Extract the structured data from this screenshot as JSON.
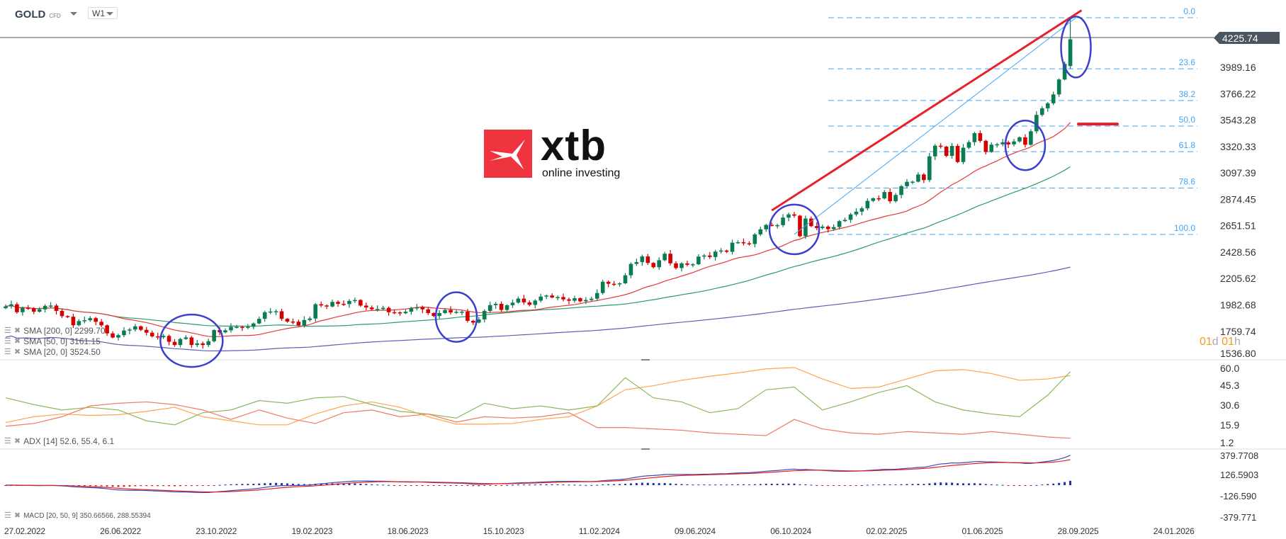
{
  "header": {
    "symbol": "GOLD",
    "instrument_type": "CFD",
    "timeframe": "W1"
  },
  "current_price": "4225.74",
  "countdown": {
    "days": "01",
    "days_unit": "d",
    "hours": "01",
    "hours_unit": "h"
  },
  "logo": {
    "brand": "xtb",
    "tagline": "online investing",
    "color": "#f0343f"
  },
  "legends": {
    "sma200": "SMA [200, 0] 2299.70",
    "sma50": "SMA [50, 0] 3161.15",
    "sma20": "SMA [20, 0] 3524.50",
    "adx": "ADX [14] 52.6, 55.4, 6.1",
    "macd": "MACD [20, 50, 9] 350.66566, 288.55394"
  },
  "colors": {
    "up": "#0a7d50",
    "down": "#d40000",
    "sma200": "#5a5fb5",
    "sma50": "#2e9a68",
    "sma20": "#e53935",
    "fib": "#42a5f5",
    "trendline": "#e8202a",
    "circle": "#3a3fcf",
    "adx": "#ffa54d",
    "plus_di": "#8cb85c",
    "minus_di": "#f07a63",
    "macd": "#3d47b8",
    "signal": "#e02020"
  },
  "chart_data": [
    {
      "type": "candlestick",
      "title": "",
      "price_axis_ticks": [
        "3989.16",
        "3766.22",
        "3543.28",
        "3320.33",
        "3097.39",
        "2874.45",
        "2651.51",
        "2428.56",
        "2205.62",
        "1982.68",
        "1759.74",
        "1536.80"
      ],
      "date_axis_ticks": [
        "27.02.2022",
        "26.06.2022",
        "23.10.2022",
        "19.02.2023",
        "18.06.2023",
        "15.10.2023",
        "11.02.2024",
        "09.06.2024",
        "06.10.2024",
        "02.02.2025",
        "01.06.2025",
        "28.09.2025",
        "24.01.2026"
      ],
      "first_week": "27.02.2022",
      "weekly_closes": [
        1970,
        1988,
        1921,
        1958,
        1955,
        1925,
        1945,
        1975,
        1977,
        1932,
        1888,
        1883,
        1811,
        1846,
        1853,
        1871,
        1840,
        1810,
        1742,
        1707,
        1727,
        1766,
        1775,
        1802,
        1772,
        1748,
        1717,
        1709,
        1721,
        1671,
        1644,
        1695,
        1708,
        1644,
        1658,
        1644,
        1676,
        1770,
        1751,
        1768,
        1797,
        1797,
        1792,
        1798,
        1826,
        1865,
        1921,
        1927,
        1929,
        1865,
        1842,
        1841,
        1810,
        1855,
        1868,
        1988,
        1978,
        1969,
        2008,
        1992,
        1990,
        2016,
        2024,
        1977,
        1961,
        1946,
        1948,
        1958,
        1921,
        1920,
        1912,
        1925,
        1954,
        1962,
        1945,
        1914,
        1889,
        1914,
        1940,
        1919,
        1924,
        1925,
        1848,
        1833,
        1860,
        1932,
        1981,
        1992,
        1940,
        1980,
        2002,
        2036,
        2004,
        1983,
        2019,
        2053,
        2062,
        2045,
        2049,
        2029,
        2018,
        2039,
        2013,
        2024,
        2035,
        2083,
        2178,
        2161,
        2157,
        2165,
        2233,
        2329,
        2344,
        2392,
        2337,
        2301,
        2360,
        2415,
        2334,
        2294,
        2333,
        2322,
        2326,
        2391,
        2400,
        2387,
        2433,
        2442,
        2431,
        2508,
        2512,
        2503,
        2497,
        2578,
        2621,
        2658,
        2653,
        2656,
        2720,
        2747,
        2736,
        2563,
        2712,
        2648,
        2632,
        2644,
        2623,
        2640,
        2690,
        2701,
        2747,
        2770,
        2798,
        2861,
        2883,
        2882,
        2936,
        2858,
        2911,
        2985,
        3022,
        3023,
        3084,
        3037,
        3237,
        3327,
        3319,
        3241,
        3325,
        3189,
        3310,
        3357,
        3433,
        3368,
        3274,
        3336,
        3339,
        3355,
        3338,
        3363,
        3398,
        3335,
        3449,
        3587,
        3643,
        3685,
        3760,
        3886,
        4018,
        4225
      ],
      "last_candle": {
        "open": 4000,
        "high": 4390,
        "close": 4225.74
      },
      "indicators": [
        "SMA 200",
        "SMA 50",
        "SMA 20"
      ],
      "fibonacci": {
        "levels": [
          "0.0",
          "23.6",
          "38.2",
          "50.0",
          "61.8",
          "78.6",
          "100.0"
        ],
        "price_0": 4408,
        "price_100": 2578
      },
      "trendline": {
        "from": {
          "date": "06.10.2024",
          "price": 2780
        },
        "to": {
          "date": "26.10.2025",
          "price": 4470
        }
      },
      "fib_guide": {
        "from": {
          "date": "03.11.2024",
          "price": 2578
        },
        "to": {
          "date": "19.10.2025",
          "price": 4408
        }
      },
      "marker_line_price": 3510,
      "highlight_circles": [
        "15.10.2022",
        "10.09.2023",
        "03.11.2024",
        "17.08.2025",
        "19.10.2025"
      ]
    },
    {
      "type": "line",
      "title": "ADX [14]",
      "y_ticks": [
        "60.0",
        "45.3",
        "30.6",
        "15.9",
        "1.2"
      ],
      "ylim": [
        1.2,
        60.0
      ],
      "sample_every_weeks": 5,
      "series": [
        {
          "name": "ADX",
          "values": [
            17.7,
            22,
            24,
            23,
            23.5,
            26,
            29,
            22,
            19,
            16,
            16,
            24,
            30,
            33,
            29,
            22,
            16.5,
            16.5,
            17,
            20,
            22,
            30,
            42,
            45,
            49,
            52,
            54.5,
            57.5,
            58.5,
            50,
            43,
            44,
            50,
            56,
            57,
            54,
            49,
            50,
            52.6
          ]
        },
        {
          "name": "+DI",
          "values": [
            36,
            31,
            27,
            29,
            27,
            19,
            16,
            25,
            27,
            34,
            32,
            36,
            37,
            31,
            26,
            24,
            21,
            32,
            28,
            30,
            27,
            30,
            51,
            36,
            33,
            25,
            28,
            42,
            44,
            27,
            33,
            40,
            45,
            33,
            27,
            24,
            22,
            38,
            55.4
          ]
        },
        {
          "name": "-DI",
          "values": [
            15,
            17,
            22,
            30,
            32,
            33,
            31,
            27,
            20,
            27,
            21,
            17,
            25,
            27,
            22,
            24,
            18,
            22,
            21,
            22,
            25,
            14,
            14,
            13,
            12,
            10,
            9,
            8,
            20,
            13,
            10,
            9,
            11,
            10,
            9,
            11,
            9,
            7,
            6.1
          ]
        }
      ]
    },
    {
      "type": "line",
      "title": "MACD [20, 50, 9]",
      "y_ticks": [
        "379.7708",
        "126.5903",
        "-126.590",
        "-379.771"
      ],
      "ylim": [
        -379.771,
        379.7708
      ],
      "params": {
        "fast": 20,
        "slow": 50,
        "signal": 9
      }
    }
  ]
}
